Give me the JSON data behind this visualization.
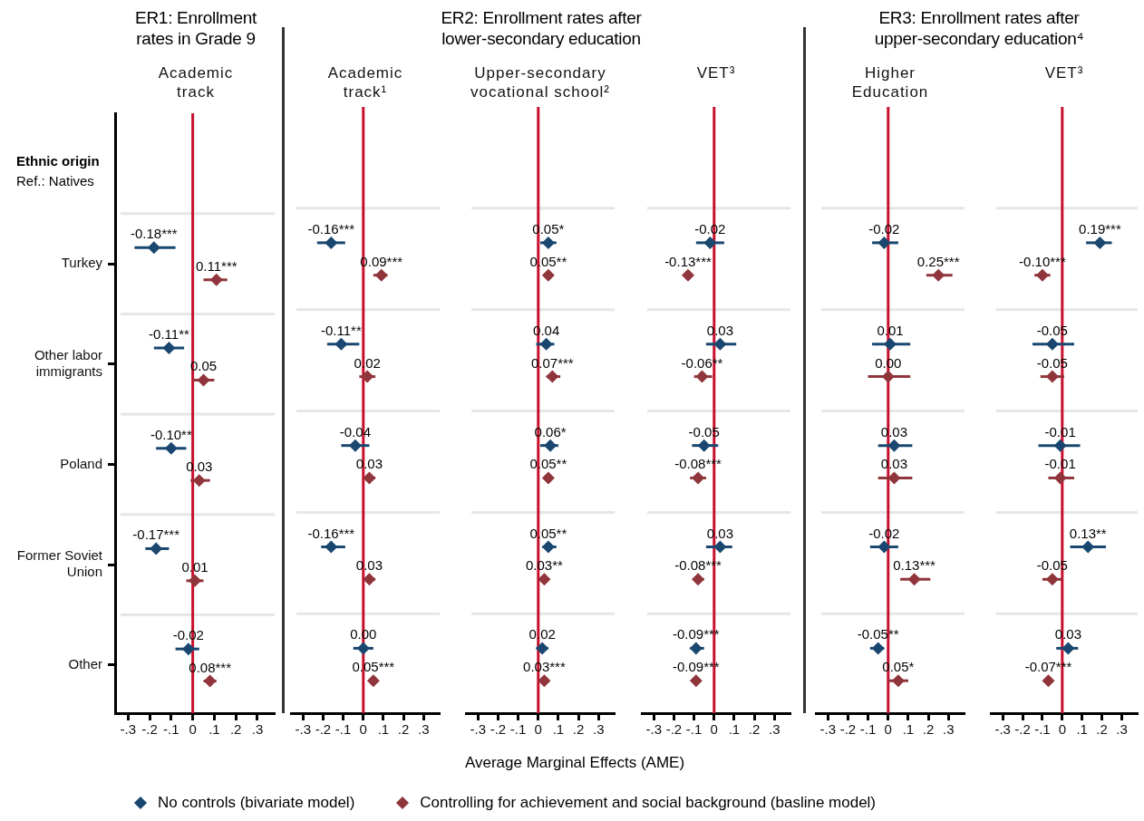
{
  "chart_data": [
    {
      "type": "scatter",
      "orientation": "horizontal",
      "title": "ER1: Enrollment rates in Grade 9",
      "subtitle": "Academic track",
      "ylabel": "Ethnic origin",
      "annotations": [
        "Ref.: Natives"
      ],
      "categories": [
        "Turkey",
        "Other labor immigrants",
        "Poland",
        "Former Soviet Union",
        "Other"
      ],
      "series": [
        {
          "name": "No controls (bivariate model)",
          "color": "#1a476f",
          "values": [
            -0.18,
            -0.11,
            -0.1,
            -0.17,
            -0.02
          ],
          "errors": [
            [
              -0.27,
              -0.08
            ],
            [
              -0.18,
              -0.04
            ],
            [
              -0.17,
              -0.03
            ],
            [
              -0.22,
              -0.11
            ],
            [
              -0.08,
              0.03
            ]
          ],
          "value_labels": [
            "-0.18***",
            "-0.11**",
            "-0.10**",
            "-0.17***",
            "-0.02"
          ]
        },
        {
          "name": "Controlling for achievement and social background (basline model)",
          "color": "#90353b",
          "values": [
            0.11,
            0.05,
            0.03,
            0.01,
            0.08
          ],
          "errors": [
            [
              0.05,
              0.16
            ],
            [
              0.0,
              0.1
            ],
            [
              -0.01,
              0.08
            ],
            [
              -0.03,
              0.05
            ],
            [
              0.05,
              0.11
            ]
          ],
          "value_labels": [
            "0.11***",
            "0.05",
            "0.03",
            "0.01",
            "0.08***"
          ]
        }
      ],
      "xlim": [
        -0.36,
        0.38
      ],
      "xticks": [
        {
          "value": -0.3,
          "label": "-.3"
        },
        {
          "value": -0.2,
          "label": "-.2"
        },
        {
          "value": -0.1,
          "label": "-.1"
        },
        {
          "value": 0,
          "label": "0"
        },
        {
          "value": 0.1,
          "label": ".1"
        },
        {
          "value": 0.2,
          "label": ".2"
        },
        {
          "value": 0.3,
          "label": ".3"
        }
      ],
      "ref_lines": [
        {
          "axis": "x",
          "value": 0,
          "color": "#c8102e"
        }
      ],
      "grid": "y",
      "marker": "diamond",
      "legend": "bottom"
    },
    {
      "type": "scatter",
      "orientation": "horizontal",
      "subtitle": "Academic track¹",
      "categories": [
        null,
        null,
        null,
        null,
        null
      ],
      "series": [
        {
          "color": "#1a476f",
          "values": [
            -0.16,
            -0.11,
            -0.04,
            -0.16,
            0.0
          ],
          "errors": [
            [
              -0.23,
              -0.09
            ],
            [
              -0.18,
              -0.02
            ],
            [
              -0.11,
              0.03
            ],
            [
              -0.21,
              -0.09
            ],
            [
              -0.05,
              0.05
            ]
          ],
          "value_labels": [
            "-0.16***",
            "-0.11**",
            "-0.04",
            "-0.16***",
            "0.00"
          ]
        },
        {
          "color": "#90353b",
          "values": [
            0.09,
            0.02,
            0.03,
            0.03,
            0.05
          ],
          "errors": [
            [
              0.05,
              0.12
            ],
            [
              -0.02,
              0.06
            ],
            [
              0.01,
              0.06
            ],
            [
              0.01,
              0.06
            ],
            null
          ],
          "value_labels": [
            "0.09***",
            "0.02",
            "0.03",
            "0.03",
            "0.05***"
          ]
        }
      ],
      "xlim": [
        -0.36,
        0.38
      ],
      "xticks": [
        {
          "value": -0.3,
          "label": "-.3"
        },
        {
          "value": -0.2,
          "label": "-.2"
        },
        {
          "value": -0.1,
          "label": "-.1"
        },
        {
          "value": 0,
          "label": "0"
        },
        {
          "value": 0.1,
          "label": ".1"
        },
        {
          "value": 0.2,
          "label": ".2"
        },
        {
          "value": 0.3,
          "label": ".3"
        }
      ],
      "ref_lines": [
        {
          "axis": "x",
          "value": 0,
          "color": "#c8102e"
        }
      ],
      "grid": "y",
      "marker": "diamond",
      "tick_labels": "x"
    },
    {
      "type": "scatter",
      "orientation": "horizontal",
      "title": "ER2: Enrollment rates after lower-secondary education",
      "subtitle": "Upper-secondary vocational school²",
      "xlabel": "Average Marginal Effects (AME)",
      "categories": [
        null,
        null,
        null,
        null,
        null
      ],
      "series": [
        {
          "color": "#1a476f",
          "values": [
            0.05,
            0.04,
            0.06,
            0.05,
            0.02
          ],
          "errors": [
            [
              0.01,
              0.09
            ],
            [
              -0.01,
              0.08
            ],
            [
              0.01,
              0.1
            ],
            [
              0.02,
              0.09
            ],
            [
              -0.01,
              0.05
            ]
          ],
          "value_labels": [
            "0.05*",
            "0.04",
            "0.06*",
            "0.05**",
            "0.02"
          ]
        },
        {
          "color": "#90353b",
          "values": [
            0.05,
            0.07,
            0.05,
            0.03,
            0.03
          ],
          "errors": [
            null,
            [
              0.04,
              0.11
            ],
            null,
            null,
            null
          ],
          "value_labels": [
            "0.05**",
            "0.07***",
            "0.05**",
            "0.03**",
            "0.03***"
          ]
        }
      ],
      "xlim": [
        -0.36,
        0.38
      ],
      "xticks": [
        {
          "value": -0.3,
          "label": "-.3"
        },
        {
          "value": -0.2,
          "label": "-.2"
        },
        {
          "value": -0.1,
          "label": "-.1"
        },
        {
          "value": 0,
          "label": "0"
        },
        {
          "value": 0.1,
          "label": ".1"
        },
        {
          "value": 0.2,
          "label": ".2"
        },
        {
          "value": 0.3,
          "label": ".3"
        }
      ],
      "ref_lines": [
        {
          "axis": "x",
          "value": 0,
          "color": "#c8102e"
        }
      ],
      "grid": "y",
      "marker": "diamond",
      "tick_labels": "x"
    },
    {
      "type": "scatter",
      "orientation": "horizontal",
      "subtitle": "VET³",
      "categories": [
        null,
        null,
        null,
        null,
        null
      ],
      "series": [
        {
          "color": "#1a476f",
          "values": [
            -0.02,
            0.03,
            -0.05,
            0.03,
            -0.09
          ],
          "errors": [
            [
              -0.09,
              0.05
            ],
            [
              -0.04,
              0.11
            ],
            [
              -0.11,
              0.02
            ],
            [
              -0.04,
              0.09
            ],
            [
              -0.12,
              -0.05
            ]
          ],
          "value_labels": [
            "-0.02",
            "0.03",
            "-0.05",
            "0.03",
            "-0.09***"
          ]
        },
        {
          "color": "#90353b",
          "values": [
            -0.13,
            -0.06,
            -0.08,
            -0.08,
            -0.09
          ],
          "errors": [
            null,
            [
              -0.1,
              -0.01
            ],
            [
              -0.12,
              -0.04
            ],
            [
              -0.1,
              -0.05
            ],
            null
          ],
          "value_labels": [
            "-0.13***",
            "-0.06**",
            "-0.08***",
            "-0.08***",
            "-0.09***"
          ]
        }
      ],
      "xlim": [
        -0.36,
        0.38
      ],
      "xticks": [
        {
          "value": -0.3,
          "label": "-.3"
        },
        {
          "value": -0.2,
          "label": "-.2"
        },
        {
          "value": -0.1,
          "label": "-.1"
        },
        {
          "value": 0,
          "label": "0"
        },
        {
          "value": 0.1,
          "label": ".1"
        },
        {
          "value": 0.2,
          "label": ".2"
        },
        {
          "value": 0.3,
          "label": ".3"
        }
      ],
      "ref_lines": [
        {
          "axis": "x",
          "value": 0,
          "color": "#c8102e"
        }
      ],
      "grid": "y",
      "marker": "diamond",
      "tick_labels": "x"
    },
    {
      "type": "scatter",
      "orientation": "horizontal",
      "title": "ER3: Enrollment rates after upper-secondary education⁴",
      "subtitle": "Higher Education",
      "categories": [
        null,
        null,
        null,
        null,
        null
      ],
      "series": [
        {
          "color": "#1a476f",
          "values": [
            -0.02,
            0.01,
            0.03,
            -0.02,
            -0.05
          ],
          "errors": [
            [
              -0.08,
              0.05
            ],
            [
              -0.08,
              0.11
            ],
            [
              -0.05,
              0.12
            ],
            [
              -0.09,
              0.05
            ],
            [
              -0.09,
              -0.02
            ]
          ],
          "value_labels": [
            "-0.02",
            "0.01",
            "0.03",
            "-0.02",
            "-0.05**"
          ]
        },
        {
          "color": "#90353b",
          "values": [
            0.25,
            0.0,
            0.03,
            0.13,
            0.05
          ],
          "errors": [
            [
              0.19,
              0.32
            ],
            [
              -0.1,
              0.11
            ],
            [
              -0.05,
              0.12
            ],
            [
              0.06,
              0.21
            ],
            [
              0.0,
              0.1
            ]
          ],
          "value_labels": [
            "0.25***",
            "0.00",
            "0.03",
            "0.13***",
            "0.05*"
          ]
        }
      ],
      "xlim": [
        -0.36,
        0.38
      ],
      "xticks": [
        {
          "value": -0.3,
          "label": "-.3"
        },
        {
          "value": -0.2,
          "label": "-.2"
        },
        {
          "value": -0.1,
          "label": "-.1"
        },
        {
          "value": 0,
          "label": "0"
        },
        {
          "value": 0.1,
          "label": ".1"
        },
        {
          "value": 0.2,
          "label": ".2"
        },
        {
          "value": 0.3,
          "label": ".3"
        }
      ],
      "ref_lines": [
        {
          "axis": "x",
          "value": 0,
          "color": "#c8102e"
        }
      ],
      "grid": "y",
      "marker": "diamond",
      "tick_labels": "x"
    },
    {
      "type": "scatter",
      "orientation": "horizontal",
      "subtitle": "VET³",
      "categories": [
        null,
        null,
        null,
        null,
        null
      ],
      "series": [
        {
          "color": "#1a476f",
          "values": [
            0.19,
            -0.05,
            -0.01,
            0.13,
            0.03
          ],
          "errors": [
            [
              0.12,
              0.25
            ],
            [
              -0.15,
              0.06
            ],
            [
              -0.12,
              0.09
            ],
            [
              0.04,
              0.22
            ],
            [
              -0.03,
              0.08
            ]
          ],
          "value_labels": [
            "0.19***",
            "-0.05",
            "-0.01",
            "0.13**",
            "0.03"
          ]
        },
        {
          "color": "#90353b",
          "values": [
            -0.1,
            -0.05,
            -0.01,
            -0.05,
            -0.07
          ],
          "errors": [
            [
              -0.14,
              -0.06
            ],
            [
              -0.11,
              0.01
            ],
            [
              -0.07,
              0.06
            ],
            [
              -0.1,
              0.0
            ],
            null
          ],
          "value_labels": [
            "-0.10***",
            "-0.05",
            "-0.01",
            "-0.05",
            "-0.07***"
          ]
        }
      ],
      "xlim": [
        -0.36,
        0.38
      ],
      "xticks": [
        {
          "value": -0.3,
          "label": "-.3"
        },
        {
          "value": -0.2,
          "label": "-.2"
        },
        {
          "value": -0.1,
          "label": "-.1"
        },
        {
          "value": 0,
          "label": "0"
        },
        {
          "value": 0.1,
          "label": ".1"
        },
        {
          "value": 0.2,
          "label": ".2"
        },
        {
          "value": 0.3,
          "label": ".3"
        }
      ],
      "ref_lines": [
        {
          "axis": "x",
          "value": 0,
          "color": "#c8102e"
        }
      ],
      "grid": "y",
      "marker": "diamond",
      "tick_labels": "x"
    }
  ]
}
